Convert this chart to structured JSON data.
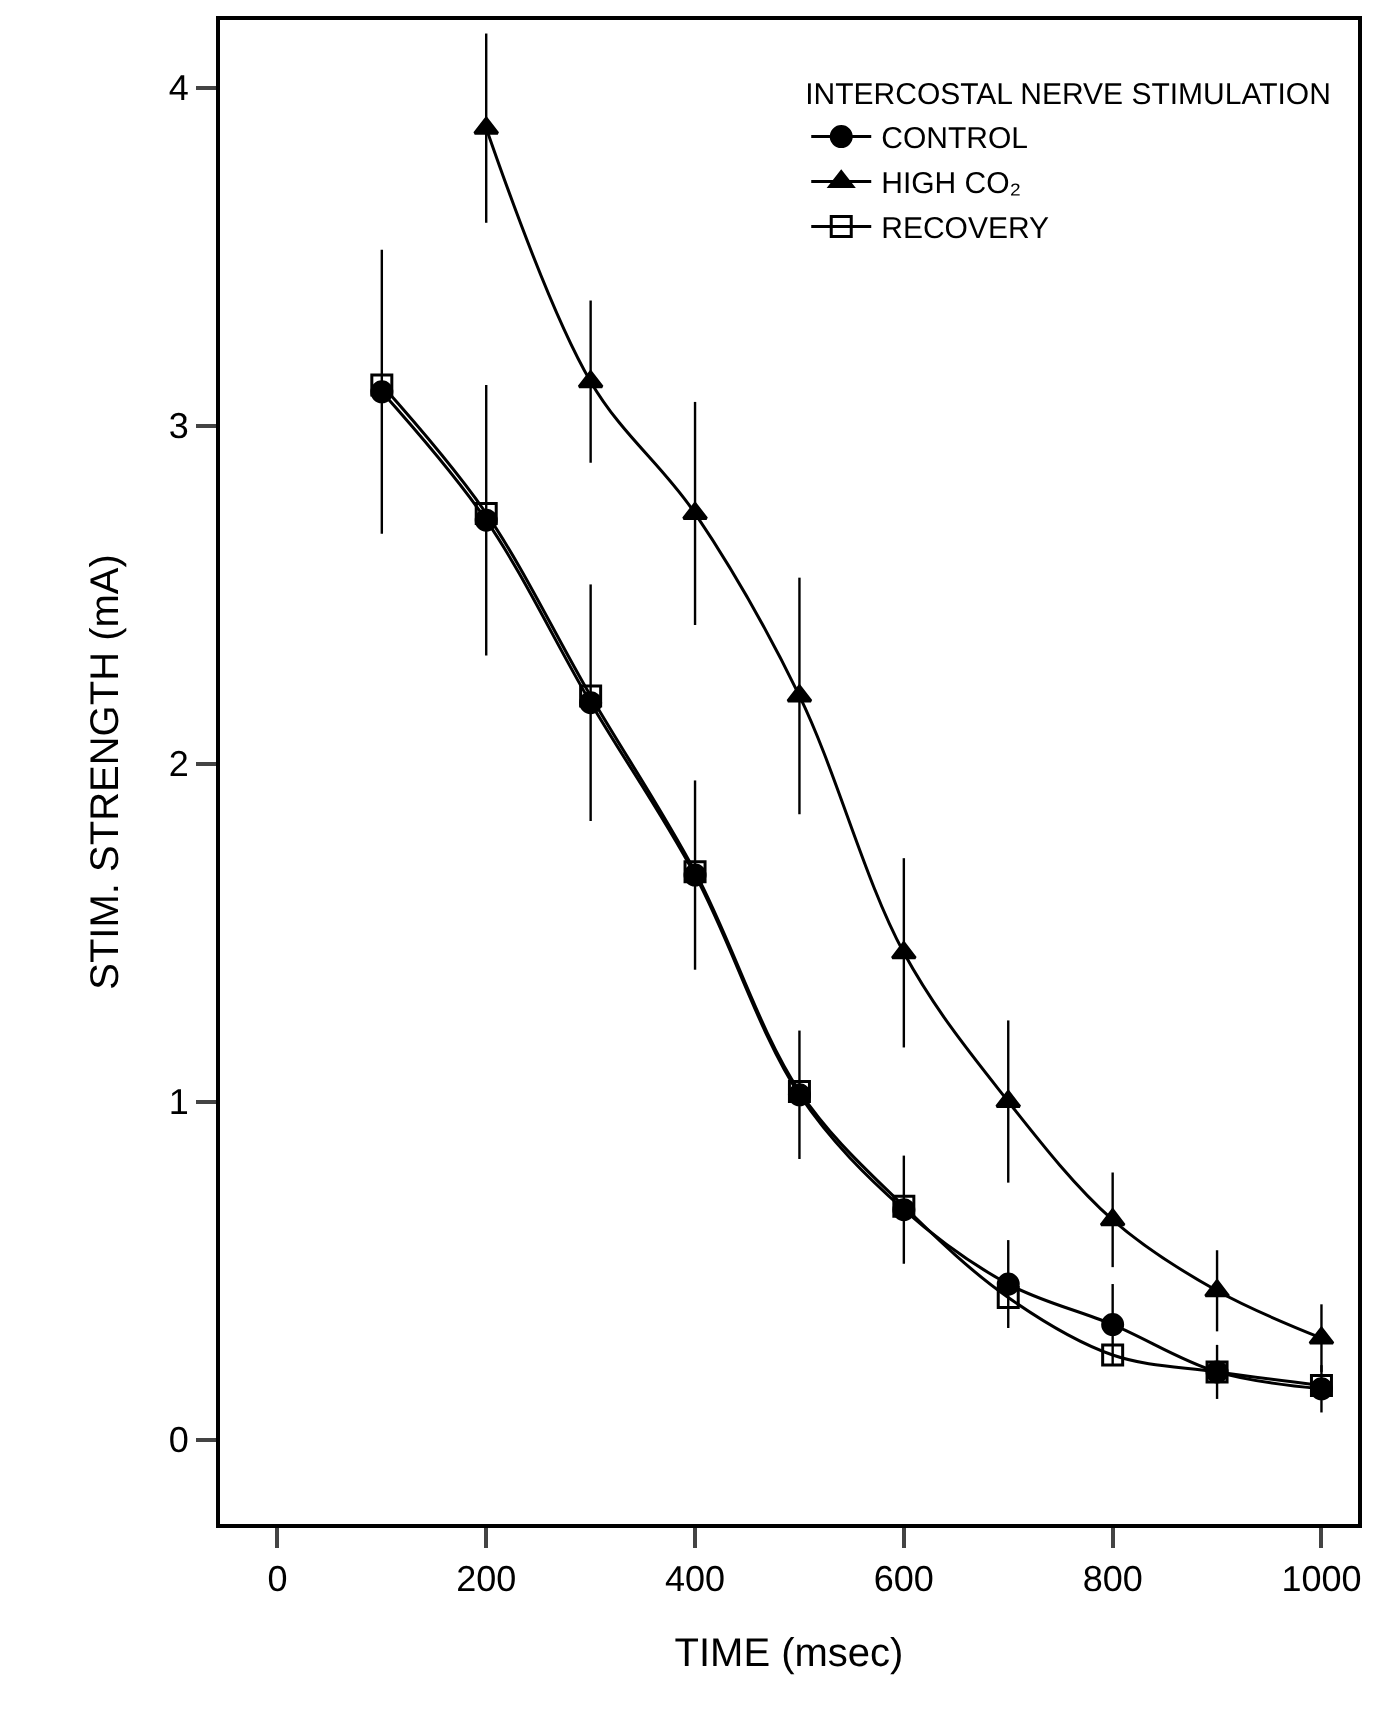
{
  "chart_data": {
    "type": "line",
    "xlabel": "TIME (msec)",
    "ylabel": "STIM. STRENGTH (mA)",
    "legend_title": "INTERCOSTAL NERVE STIMULATION",
    "legend": "top right",
    "grid": false,
    "xlim": [
      -55,
      1035
    ],
    "xticks": [
      0,
      200,
      400,
      600,
      800,
      1000
    ],
    "ylim": [
      -0.25,
      4.2
    ],
    "yticks": [
      0,
      1,
      2,
      3,
      4
    ],
    "series": [
      {
        "name": "CONTROL",
        "color": "#000000",
        "marker": "circle",
        "x": [
          100,
          200,
          300,
          400,
          500,
          600,
          700,
          800,
          900,
          1000
        ],
        "values": [
          3.1,
          2.72,
          2.18,
          1.67,
          1.02,
          0.68,
          0.46,
          0.34,
          0.2,
          0.15
        ],
        "errors": [
          0.42,
          0.4,
          0.35,
          0.28,
          0.19,
          0.16,
          0.13,
          0.12,
          0.08,
          0.07
        ]
      },
      {
        "name": "HIGH CO₂",
        "color": "#000000",
        "marker": "triangle",
        "x": [
          200,
          300,
          400,
          500,
          600,
          700,
          800,
          900,
          1000
        ],
        "values": [
          3.88,
          3.13,
          2.74,
          2.2,
          1.44,
          1.0,
          0.65,
          0.44,
          0.3
        ],
        "errors": [
          0.28,
          0.24,
          0.33,
          0.35,
          0.28,
          0.24,
          0.14,
          0.12,
          0.1
        ]
      },
      {
        "name": "RECOVERY",
        "color": "#000000",
        "marker": "square-open",
        "x": [
          100,
          200,
          300,
          400,
          500,
          600,
          700,
          800,
          900,
          1000
        ],
        "values": [
          3.12,
          2.74,
          2.2,
          1.68,
          1.03,
          0.69,
          0.42,
          0.25,
          0.2,
          0.16
        ]
      }
    ]
  }
}
